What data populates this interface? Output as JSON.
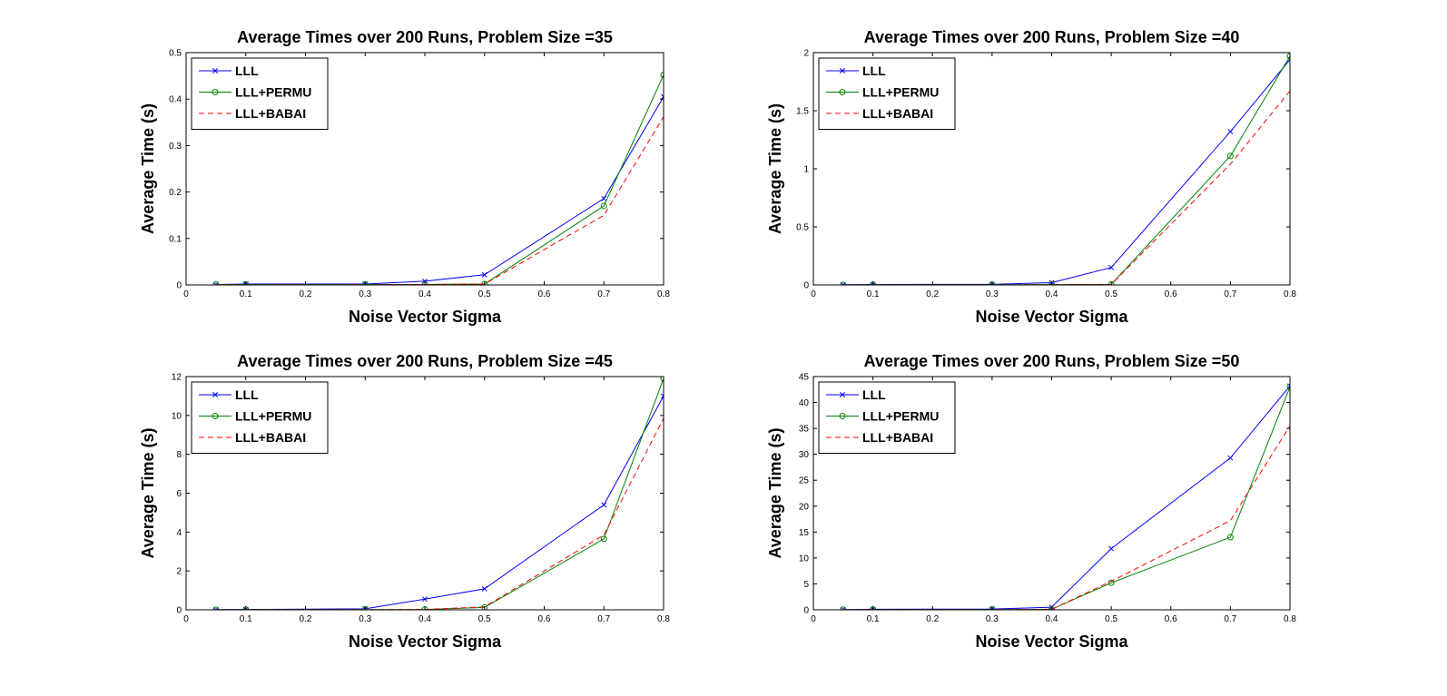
{
  "chart_data": [
    {
      "type": "line",
      "title": "Average Times over 200 Runs, Problem Size =35",
      "xlabel": "Noise Vector Sigma",
      "ylabel": "Average Time (s)",
      "xlim": [
        0,
        0.8
      ],
      "ylim": [
        0,
        0.5
      ],
      "xticks": [
        0,
        0.1,
        0.2,
        0.3,
        0.4,
        0.5,
        0.6,
        0.7,
        0.8
      ],
      "yticks": [
        0,
        0.1,
        0.2,
        0.3,
        0.4,
        0.5
      ],
      "xtick_labels": [
        "0",
        "0.1",
        "0.2",
        "0.3",
        "0.4",
        "0.5",
        "0.6",
        "0.7",
        "0.8"
      ],
      "ytick_labels": [
        "0",
        "0.1",
        "0.2",
        "0.3",
        "0.4",
        "0.5"
      ],
      "grid": false,
      "legend_position": "top-left",
      "x": [
        0.05,
        0.1,
        0.3,
        0.4,
        0.5,
        0.7,
        0.8
      ],
      "series": [
        {
          "name": "LLL",
          "color": "#0000ff",
          "style": "solid",
          "marker": "x",
          "values": [
            0.001,
            0.002,
            0.002,
            0.008,
            0.022,
            0.186,
            0.405
          ]
        },
        {
          "name": "LLL+PERMU",
          "color": "#008000",
          "style": "solid",
          "marker": "o",
          "values": [
            0.001,
            0.001,
            0.001,
            0.001,
            0.002,
            0.17,
            0.452
          ]
        },
        {
          "name": "LLL+BABAI",
          "color": "#ff0000",
          "style": "dashed",
          "marker": "",
          "values": [
            0.0005,
            0.0005,
            0.0005,
            0.001,
            0.002,
            0.15,
            0.362
          ]
        }
      ]
    },
    {
      "type": "line",
      "title": "Average Times over 200 Runs, Problem Size =40",
      "xlabel": "Noise Vector Sigma",
      "ylabel": "Average Time (s)",
      "xlim": [
        0,
        0.8
      ],
      "ylim": [
        0,
        2
      ],
      "xticks": [
        0,
        0.1,
        0.2,
        0.3,
        0.4,
        0.5,
        0.6,
        0.7,
        0.8
      ],
      "yticks": [
        0,
        0.5,
        1,
        1.5,
        2
      ],
      "xtick_labels": [
        "0",
        "0.1",
        "0.2",
        "0.3",
        "0.4",
        "0.5",
        "0.6",
        "0.7",
        "0.8"
      ],
      "ytick_labels": [
        "0",
        "0.5",
        "1",
        "1.5",
        "2"
      ],
      "grid": false,
      "legend_position": "top-left",
      "x": [
        0.05,
        0.1,
        0.3,
        0.4,
        0.5,
        0.7,
        0.8
      ],
      "series": [
        {
          "name": "LLL",
          "color": "#0000ff",
          "style": "solid",
          "marker": "x",
          "values": [
            0.002,
            0.004,
            0.005,
            0.02,
            0.15,
            1.32,
            1.94
          ]
        },
        {
          "name": "LLL+PERMU",
          "color": "#008000",
          "style": "solid",
          "marker": "o",
          "values": [
            0.001,
            0.002,
            0.002,
            0.003,
            0.005,
            1.11,
            1.97
          ]
        },
        {
          "name": "LLL+BABAI",
          "color": "#ff0000",
          "style": "dashed",
          "marker": "",
          "values": [
            0.001,
            0.001,
            0.001,
            0.002,
            0.004,
            1.04,
            1.67
          ]
        }
      ]
    },
    {
      "type": "line",
      "title": "Average Times over 200 Runs, Problem Size =45",
      "xlabel": "Noise Vector Sigma",
      "ylabel": "Average Time (s)",
      "xlim": [
        0,
        0.8
      ],
      "ylim": [
        0,
        12
      ],
      "xticks": [
        0,
        0.1,
        0.2,
        0.3,
        0.4,
        0.5,
        0.6,
        0.7,
        0.8
      ],
      "yticks": [
        0,
        2,
        4,
        6,
        8,
        10,
        12
      ],
      "xtick_labels": [
        "0",
        "0.1",
        "0.2",
        "0.3",
        "0.4",
        "0.5",
        "0.6",
        "0.7",
        "0.8"
      ],
      "ytick_labels": [
        "0",
        "2",
        "4",
        "6",
        "8",
        "10",
        "12"
      ],
      "grid": false,
      "legend_position": "top-left",
      "x": [
        0.05,
        0.1,
        0.3,
        0.4,
        0.5,
        0.7,
        0.8
      ],
      "series": [
        {
          "name": "LLL",
          "color": "#0000ff",
          "style": "solid",
          "marker": "x",
          "values": [
            0.01,
            0.02,
            0.05,
            0.55,
            1.08,
            5.4,
            11.0
          ]
        },
        {
          "name": "LLL+PERMU",
          "color": "#008000",
          "style": "solid",
          "marker": "o",
          "values": [
            0.005,
            0.01,
            0.01,
            0.02,
            0.12,
            3.65,
            11.9
          ]
        },
        {
          "name": "LLL+BABAI",
          "color": "#ff0000",
          "style": "dashed",
          "marker": "",
          "values": [
            0.005,
            0.01,
            0.01,
            0.02,
            0.15,
            3.85,
            9.85
          ]
        }
      ]
    },
    {
      "type": "line",
      "title": "Average Times over 200 Runs, Problem Size =50",
      "xlabel": "Noise Vector Sigma",
      "ylabel": "Average Time (s)",
      "xlim": [
        0,
        0.8
      ],
      "ylim": [
        0,
        45
      ],
      "xticks": [
        0,
        0.1,
        0.2,
        0.3,
        0.4,
        0.5,
        0.6,
        0.7,
        0.8
      ],
      "yticks": [
        0,
        5,
        10,
        15,
        20,
        25,
        30,
        35,
        40,
        45
      ],
      "xtick_labels": [
        "0",
        "0.1",
        "0.2",
        "0.3",
        "0.4",
        "0.5",
        "0.6",
        "0.7",
        "0.8"
      ],
      "ytick_labels": [
        "0",
        "5",
        "10",
        "15",
        "20",
        "25",
        "30",
        "35",
        "40",
        "45"
      ],
      "grid": false,
      "legend_position": "top-left",
      "x": [
        0.05,
        0.1,
        0.3,
        0.4,
        0.5,
        0.7,
        0.8
      ],
      "series": [
        {
          "name": "LLL",
          "color": "#0000ff",
          "style": "solid",
          "marker": "x",
          "values": [
            0.05,
            0.1,
            0.15,
            0.5,
            11.8,
            29.3,
            43.2
          ]
        },
        {
          "name": "LLL+PERMU",
          "color": "#008000",
          "style": "solid",
          "marker": "o",
          "values": [
            0.02,
            0.05,
            0.05,
            0.1,
            5.2,
            14.0,
            43.0
          ]
        },
        {
          "name": "LLL+BABAI",
          "color": "#ff0000",
          "style": "dashed",
          "marker": "",
          "values": [
            0.02,
            0.05,
            0.05,
            0.1,
            5.5,
            17.2,
            35.5
          ]
        }
      ]
    }
  ]
}
